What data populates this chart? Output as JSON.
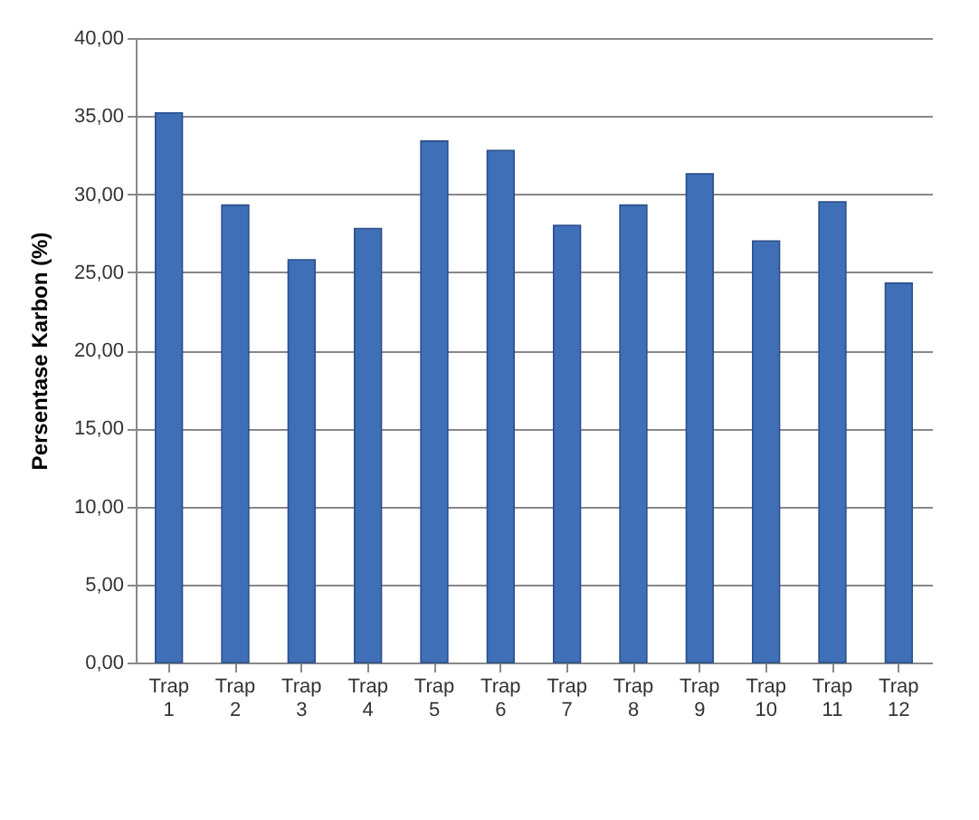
{
  "chart_data": {
    "type": "bar",
    "ylabel": "Persentase Karbon  (%)",
    "categories": [
      "Trap 1",
      "Trap 2",
      "Trap 3",
      "Trap 4",
      "Trap 5",
      "Trap 6",
      "Trap 7",
      "Trap 8",
      "Trap 9",
      "Trap 10",
      "Trap 11",
      "Trap 12"
    ],
    "values": [
      35.2,
      29.3,
      25.8,
      27.8,
      33.4,
      32.8,
      28.0,
      29.3,
      31.3,
      27.0,
      29.5,
      24.3
    ],
    "color": "#3f6fb6",
    "ylim": [
      0,
      40
    ],
    "yticks": [
      {
        "value": 0,
        "label": "0,00"
      },
      {
        "value": 5,
        "label": "5,00"
      },
      {
        "value": 10,
        "label": "10,00"
      },
      {
        "value": 15,
        "label": "15,00"
      },
      {
        "value": 20,
        "label": "20,00"
      },
      {
        "value": 25,
        "label": "25,00"
      },
      {
        "value": 30,
        "label": "30,00"
      },
      {
        "value": 35,
        "label": "35,00"
      },
      {
        "value": 40,
        "label": "40,00"
      }
    ],
    "grid": "y"
  }
}
